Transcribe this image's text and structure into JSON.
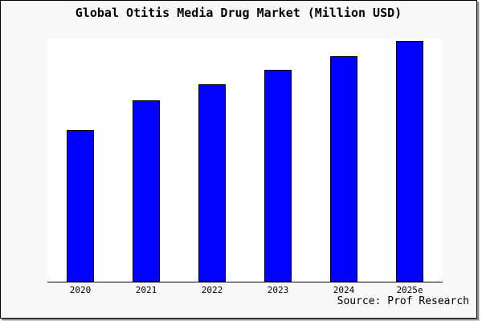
{
  "window": {
    "background": "#f8f8f8",
    "border_color": "#000000",
    "shadow_color": "#8b8b8b"
  },
  "chart_data": {
    "type": "bar",
    "title": "Global Otitis Media Drug Market (Million USD)",
    "categories": [
      "2020",
      "2021",
      "2022",
      "2023",
      "2024",
      "2025e"
    ],
    "values_relative_to_max_pct": [
      63,
      75.3,
      82,
      88,
      93.7,
      100
    ],
    "xlabel": "",
    "ylabel": "",
    "y_axis_ticks": "none shown",
    "gridlines": false,
    "legend": "none",
    "plot_background": "#ffffff",
    "bar_color": "#0000ff",
    "bar_edge_color": "#000000",
    "axis_line_color": "#000000"
  },
  "source": {
    "text": "Source: Prof Research"
  }
}
